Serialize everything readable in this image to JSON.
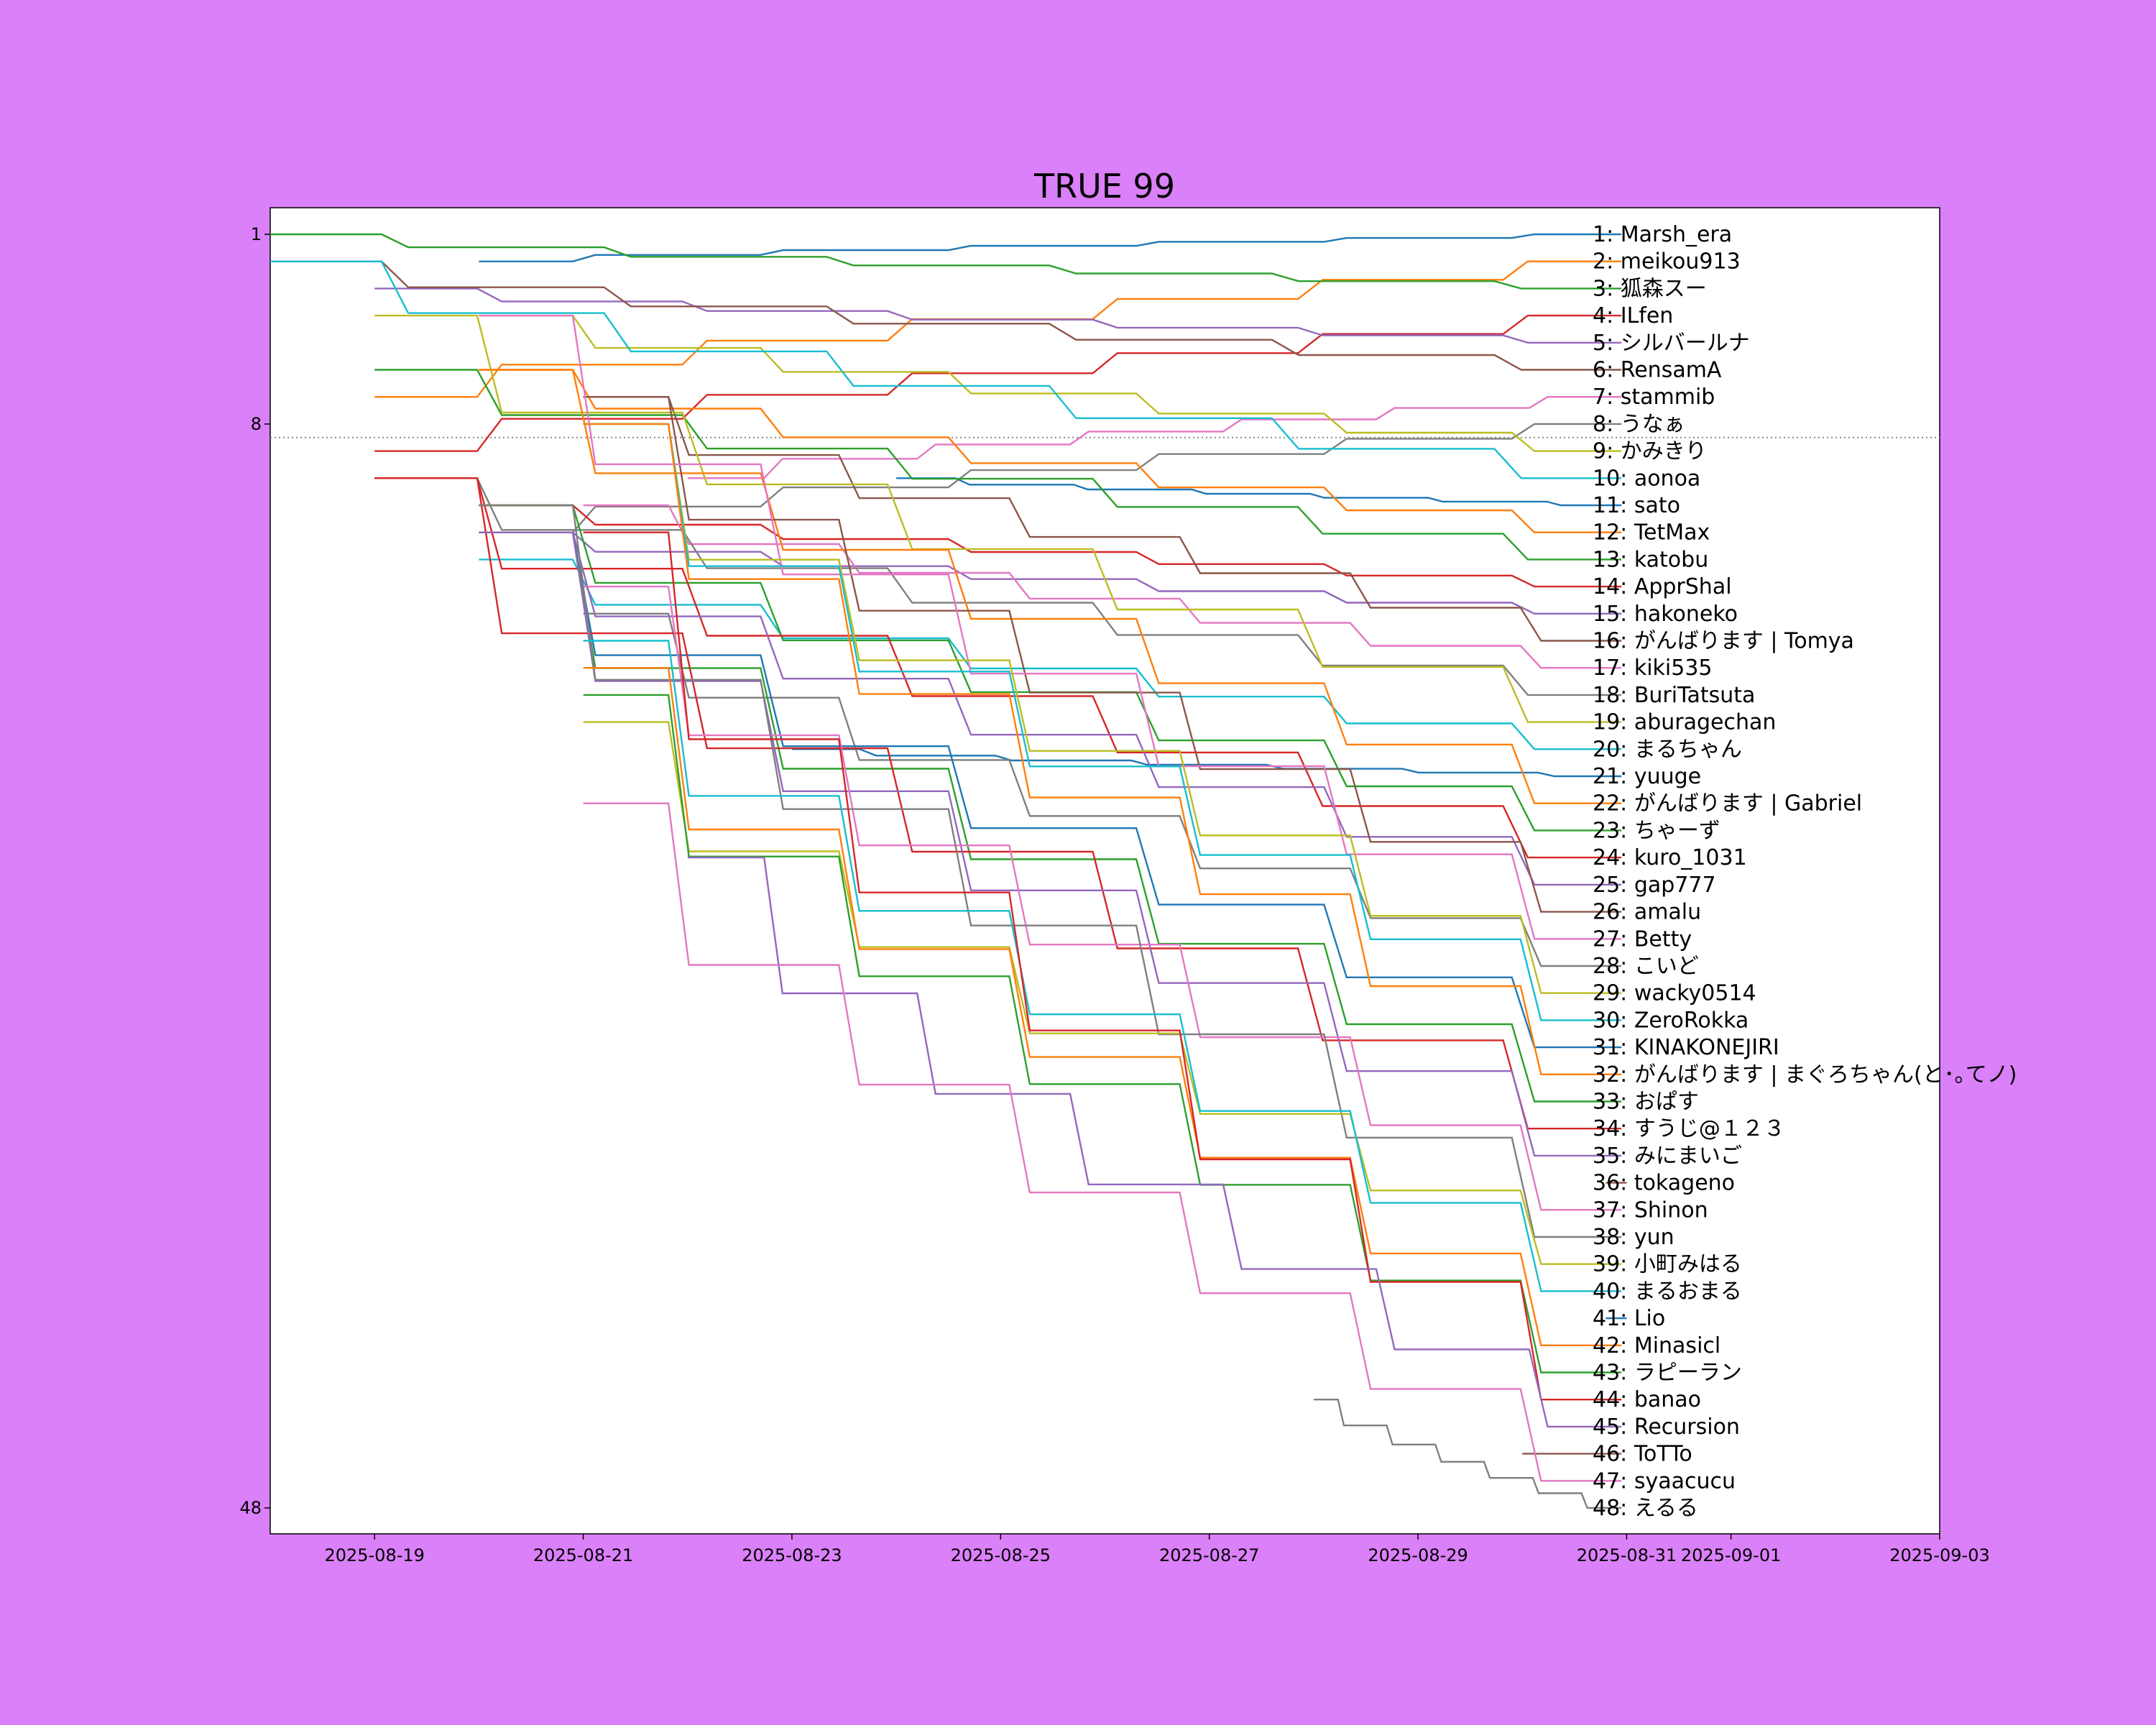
{
  "chart_data": {
    "type": "line",
    "title": "TRUE 99",
    "xlabel": "",
    "ylabel": "",
    "x_ticks": [
      "2025-08-19",
      "2025-08-21",
      "2025-08-23",
      "2025-08-25",
      "2025-08-27",
      "2025-08-29",
      "2025-08-31",
      "2025-09-01",
      "2025-09-03"
    ],
    "xlim": [
      "2025-08-18",
      "2025-09-03"
    ],
    "y_ticks": [
      1,
      8,
      48
    ],
    "ylim": [
      48,
      1
    ],
    "y_inverted": true,
    "reference_line": {
      "y": 8.5,
      "style": "dotted",
      "color": "#888888"
    },
    "grid": false,
    "legend": "right-end labels",
    "colors": [
      "#1f77b4",
      "#ff7f0e",
      "#2ca02c",
      "#d62728",
      "#9467bd",
      "#8c564b",
      "#e377c2",
      "#7f7f7f",
      "#bcbd22",
      "#17becf"
    ],
    "series": [
      {
        "name": "Marsh_era",
        "final_rank": 1,
        "start_date": "2025-08-20",
        "start_rank": 2
      },
      {
        "name": "meikou913",
        "final_rank": 2,
        "start_date": "2025-08-19",
        "start_rank": 7
      },
      {
        "name": "狐森スー",
        "final_rank": 3,
        "start_date": "2025-08-18",
        "start_rank": 1
      },
      {
        "name": "ILfen",
        "final_rank": 4,
        "start_date": "2025-08-19",
        "start_rank": 9
      },
      {
        "name": "シルバールナ",
        "final_rank": 5,
        "start_date": "2025-08-19",
        "start_rank": 3
      },
      {
        "name": "RensamA",
        "final_rank": 6,
        "start_date": "2025-08-18",
        "start_rank": 2
      },
      {
        "name": "stammib",
        "final_rank": 7,
        "start_date": "2025-08-22",
        "start_rank": 10
      },
      {
        "name": "うなぁ",
        "final_rank": 8,
        "start_date": "2025-08-20",
        "start_rank": 12
      },
      {
        "name": "かみきり",
        "final_rank": 9,
        "start_date": "2025-08-20",
        "start_rank": 4
      },
      {
        "name": "aonoa",
        "final_rank": 10,
        "start_date": "2025-08-18",
        "start_rank": 2
      },
      {
        "name": "sato",
        "final_rank": 11,
        "start_date": "2025-08-24",
        "start_rank": 10
      },
      {
        "name": "TetMax",
        "final_rank": 12,
        "start_date": "2025-08-20",
        "start_rank": 6
      },
      {
        "name": "katobu",
        "final_rank": 13,
        "start_date": "2025-08-19",
        "start_rank": 6
      },
      {
        "name": "ApprShal",
        "final_rank": 14,
        "start_date": "2025-08-20",
        "start_rank": 11
      },
      {
        "name": "hakoneko",
        "final_rank": 15,
        "start_date": "2025-08-20",
        "start_rank": 12
      },
      {
        "name": "がんばります | Tomya",
        "final_rank": 16,
        "start_date": "2025-08-21",
        "start_rank": 7
      },
      {
        "name": "kiki535",
        "final_rank": 17,
        "start_date": "2025-08-21",
        "start_rank": 11
      },
      {
        "name": "BuriTatsuta",
        "final_rank": 18,
        "start_date": "2025-08-19",
        "start_rank": 10
      },
      {
        "name": "aburagechan",
        "final_rank": 19,
        "start_date": "2025-08-19",
        "start_rank": 4
      },
      {
        "name": "まるちゃん",
        "final_rank": 20,
        "start_date": "2025-08-20",
        "start_rank": 13
      },
      {
        "name": "yuuge",
        "final_rank": 21,
        "start_date": "2025-08-23",
        "start_rank": 20
      },
      {
        "name": "がんばります | Gabriel",
        "final_rank": 22,
        "start_date": "2025-08-20",
        "start_rank": 6
      },
      {
        "name": "ちゃーず",
        "final_rank": 23,
        "start_date": "2025-08-20",
        "start_rank": 11
      },
      {
        "name": "kuro_1031",
        "final_rank": 24,
        "start_date": "2025-08-19",
        "start_rank": 10
      },
      {
        "name": "gap777",
        "final_rank": 25,
        "start_date": "2025-08-20",
        "start_rank": 12
      },
      {
        "name": "amalu",
        "final_rank": 26,
        "start_date": "2025-08-21",
        "start_rank": 7
      },
      {
        "name": "Betty",
        "final_rank": 27,
        "start_date": "2025-08-20",
        "start_rank": 4
      },
      {
        "name": "こいど",
        "final_rank": 28,
        "start_date": "2025-08-21",
        "start_rank": 15
      },
      {
        "name": "wacky0514",
        "final_rank": 29,
        "start_date": "2025-08-21",
        "start_rank": 8
      },
      {
        "name": "ZeroRokka",
        "final_rank": 30,
        "start_date": "2025-08-21",
        "start_rank": 8
      },
      {
        "name": "KINAKONEJIRI",
        "final_rank": 31,
        "start_date": "2025-08-20",
        "start_rank": 12
      },
      {
        "name": "がんばります | まぐろちゃん(と･｡てノ)",
        "final_rank": 32,
        "start_date": "2025-08-21",
        "start_rank": 8
      },
      {
        "name": "おぱす",
        "final_rank": 33,
        "start_date": "2025-08-20",
        "start_rank": 12
      },
      {
        "name": "すうじ@１２３",
        "final_rank": 34,
        "start_date": "2025-08-19",
        "start_rank": 10
      },
      {
        "name": "みにまいご",
        "final_rank": 35,
        "start_date": "2025-08-20",
        "start_rank": 12
      },
      {
        "name": "tokageno",
        "final_rank": 36,
        "start_date": "2025-08-31",
        "start_rank": 36
      },
      {
        "name": "Shinon",
        "final_rank": 37,
        "start_date": "2025-08-21",
        "start_rank": 14
      },
      {
        "name": "yun",
        "final_rank": 38,
        "start_date": "2025-08-20",
        "start_rank": 11
      },
      {
        "name": "小町みはる",
        "final_rank": 39,
        "start_date": "2025-08-21",
        "start_rank": 19
      },
      {
        "name": "まるおまる",
        "final_rank": 40,
        "start_date": "2025-08-21",
        "start_rank": 16
      },
      {
        "name": "Lio",
        "final_rank": 41,
        "start_date": "2025-08-31",
        "start_rank": 41
      },
      {
        "name": "Minasicl",
        "final_rank": 42,
        "start_date": "2025-08-21",
        "start_rank": 17
      },
      {
        "name": "ラピーラン",
        "final_rank": 43,
        "start_date": "2025-08-21",
        "start_rank": 18
      },
      {
        "name": "banao",
        "final_rank": 44,
        "start_date": "2025-08-21",
        "start_rank": 12
      },
      {
        "name": "Recursion",
        "final_rank": 45,
        "start_date": "2025-08-22",
        "start_rank": 24
      },
      {
        "name": "ToTTo",
        "final_rank": 46,
        "start_date": "2025-08-30",
        "start_rank": 46
      },
      {
        "name": "syaacucu",
        "final_rank": 47,
        "start_date": "2025-08-21",
        "start_rank": 22
      },
      {
        "name": "えるる",
        "final_rank": 48,
        "start_date": "2025-08-28",
        "start_rank": 44
      }
    ]
  }
}
